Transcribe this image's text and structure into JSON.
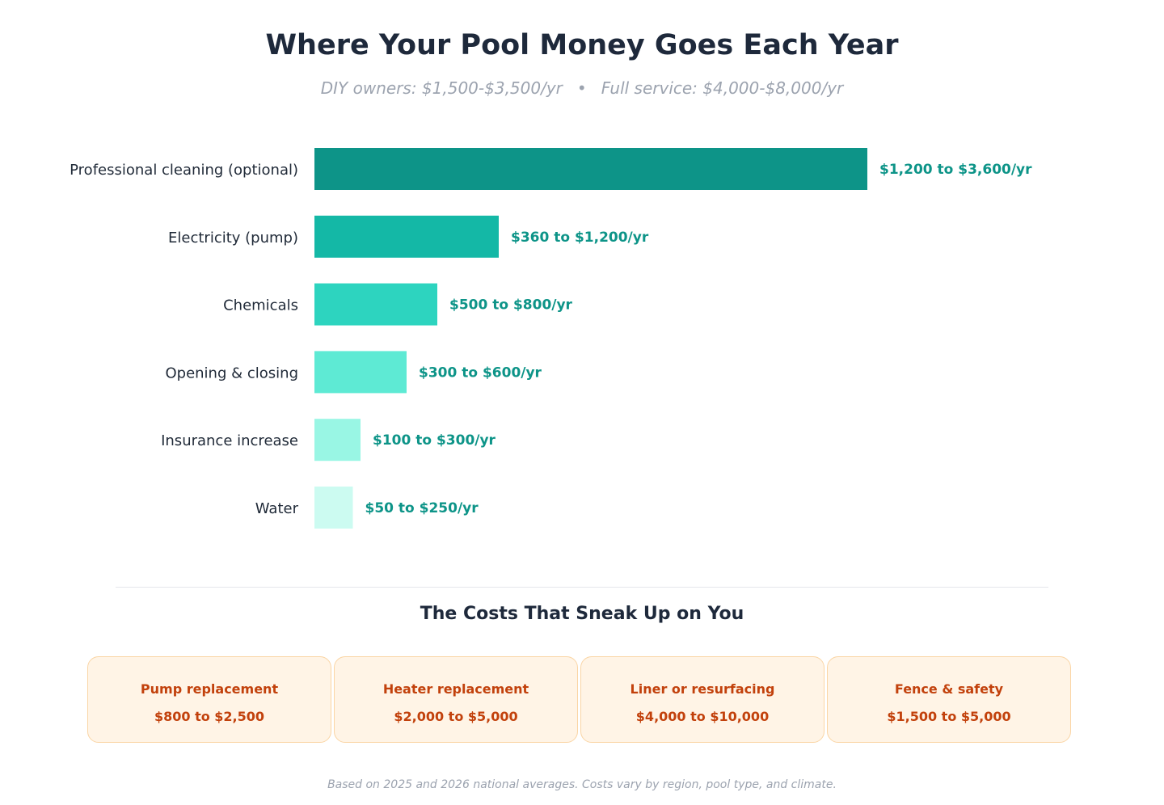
{
  "header": {
    "title": "Where Your Pool Money Goes Each Year",
    "subtitle_left": "DIY owners: $1,500-$3,500/yr",
    "subtitle_separator": "•",
    "subtitle_right": "Full service: $4,000-$8,000/yr"
  },
  "chart_data": {
    "type": "bar",
    "orientation": "horizontal",
    "title": "Where Your Pool Money Goes Each Year",
    "xlabel": "",
    "ylabel": "",
    "grid": false,
    "legend": "none",
    "categories": [
      "Professional cleaning (optional)",
      "Electricity (pump)",
      "Chemicals",
      "Opening & closing",
      "Insurance increase",
      "Water"
    ],
    "values": [
      3600,
      1200,
      800,
      600,
      300,
      250
    ],
    "ranges": [
      [
        1200,
        3600
      ],
      [
        360,
        1200
      ],
      [
        500,
        800
      ],
      [
        300,
        600
      ],
      [
        100,
        300
      ],
      [
        50,
        250
      ]
    ],
    "data_labels": [
      "$1,200 to $3,600/yr",
      "$360 to $1,200/yr",
      "$500 to $800/yr",
      "$300 to $600/yr",
      "$100 to $300/yr",
      "$50 to $250/yr"
    ],
    "colors": [
      "#0d9488",
      "#14b8a6",
      "#2dd4bf",
      "#5eead4",
      "#99f6e4",
      "#ccfbf1"
    ],
    "label_color": "#0d9488",
    "xlim": [
      0,
      3600
    ]
  },
  "hidden_costs": {
    "title": "The Costs That Sneak Up on You",
    "cards": [
      {
        "name": "Pump replacement",
        "cost": "$800 to $2,500"
      },
      {
        "name": "Heater replacement",
        "cost": "$2,000 to $5,000"
      },
      {
        "name": "Liner or resurfacing",
        "cost": "$4,000 to $10,000"
      },
      {
        "name": "Fence & safety",
        "cost": "$1,500 to $5,000"
      }
    ],
    "accent_color": "#c2410c",
    "card_background": "#fff4e6"
  },
  "footnote": "Based on 2025 and 2026 national averages. Costs vary by region, pool type, and climate."
}
